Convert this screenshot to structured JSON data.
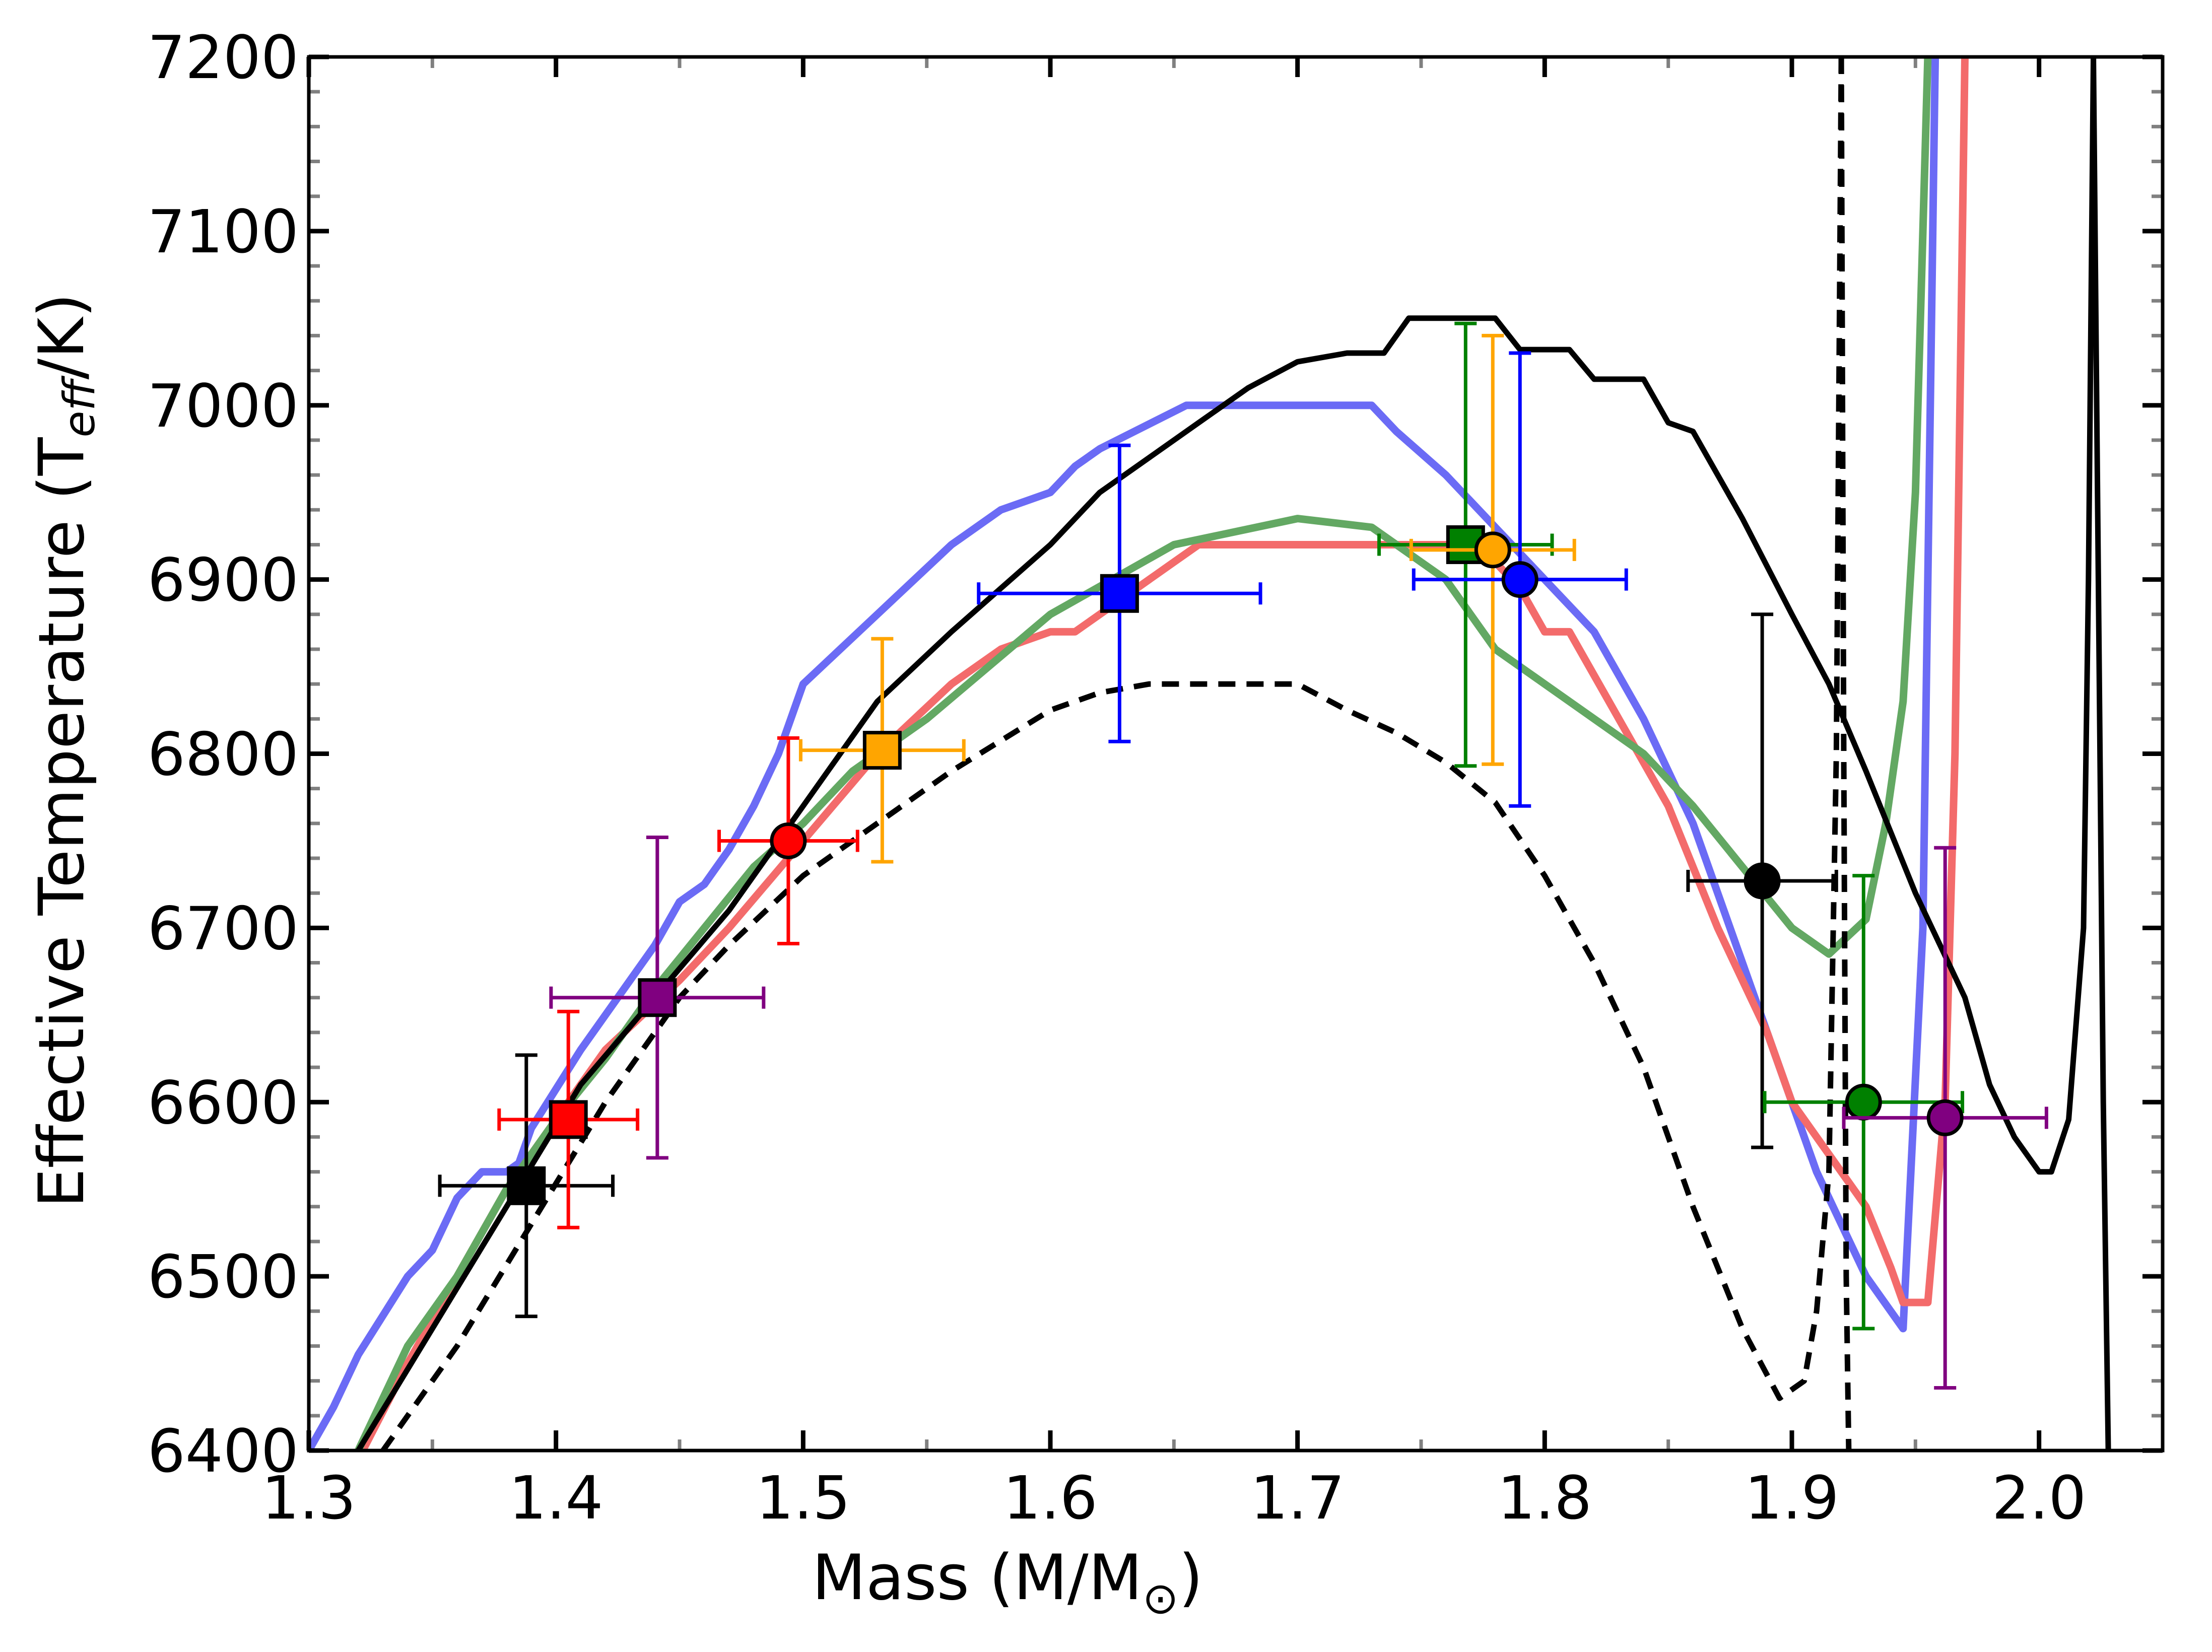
{
  "chart_data": {
    "type": "line",
    "title": "",
    "xlabel": "Mass (M/M",
    "xlabel_symbol": "⊙",
    "xlabel_close": ")",
    "ylabel": "Effective Temperature (T",
    "ylabel_sub": "eff",
    "ylabel_close": "/K)",
    "xlim": [
      1.3,
      2.05
    ],
    "ylim": [
      6400,
      7200
    ],
    "xticks": [
      1.3,
      1.4,
      1.5,
      1.6,
      1.7,
      1.8,
      1.9,
      2.0
    ],
    "xtick_labels": [
      "1.3",
      "1.4",
      "1.5",
      "1.6",
      "1.7",
      "1.8",
      "1.9",
      "2.0"
    ],
    "yticks": [
      6400,
      6500,
      6600,
      6700,
      6800,
      6900,
      7000,
      7100,
      7200
    ],
    "ytick_labels": [
      "6400",
      "6500",
      "6600",
      "6700",
      "6800",
      "6900",
      "7000",
      "7100",
      "7200"
    ],
    "series": [
      {
        "name": "blue track",
        "color": "#6b6bf5",
        "width": 15,
        "dash": "",
        "points": [
          [
            1.3,
            6400
          ],
          [
            1.31,
            6425
          ],
          [
            1.32,
            6455
          ],
          [
            1.34,
            6500
          ],
          [
            1.35,
            6515
          ],
          [
            1.36,
            6545
          ],
          [
            1.37,
            6560
          ],
          [
            1.38,
            6560
          ],
          [
            1.385,
            6565
          ],
          [
            1.39,
            6585
          ],
          [
            1.41,
            6630
          ],
          [
            1.42,
            6650
          ],
          [
            1.43,
            6670
          ],
          [
            1.44,
            6690
          ],
          [
            1.45,
            6715
          ],
          [
            1.46,
            6725
          ],
          [
            1.47,
            6745
          ],
          [
            1.48,
            6770
          ],
          [
            1.49,
            6800
          ],
          [
            1.5,
            6840
          ],
          [
            1.53,
            6880
          ],
          [
            1.56,
            6920
          ],
          [
            1.58,
            6940
          ],
          [
            1.6,
            6950
          ],
          [
            1.61,
            6965
          ],
          [
            1.62,
            6975
          ],
          [
            1.655,
            7000
          ],
          [
            1.73,
            7000
          ],
          [
            1.74,
            6985
          ],
          [
            1.76,
            6960
          ],
          [
            1.78,
            6930
          ],
          [
            1.8,
            6900
          ],
          [
            1.82,
            6870
          ],
          [
            1.84,
            6820
          ],
          [
            1.86,
            6760
          ],
          [
            1.875,
            6700
          ],
          [
            1.89,
            6640
          ],
          [
            1.9,
            6600
          ],
          [
            1.91,
            6560
          ],
          [
            1.92,
            6530
          ],
          [
            1.93,
            6500
          ],
          [
            1.945,
            6470
          ],
          [
            1.953,
            6700
          ],
          [
            1.958,
            7200
          ]
        ]
      },
      {
        "name": "red track",
        "color": "#f36b6b",
        "width": 15,
        "dash": "",
        "points": [
          [
            1.32,
            6395
          ],
          [
            1.34,
            6450
          ],
          [
            1.36,
            6500
          ],
          [
            1.38,
            6550
          ],
          [
            1.4,
            6590
          ],
          [
            1.42,
            6630
          ],
          [
            1.45,
            6670
          ],
          [
            1.47,
            6700
          ],
          [
            1.5,
            6750
          ],
          [
            1.53,
            6800
          ],
          [
            1.56,
            6840
          ],
          [
            1.58,
            6860
          ],
          [
            1.6,
            6870
          ],
          [
            1.61,
            6870
          ],
          [
            1.63,
            6890
          ],
          [
            1.65,
            6910
          ],
          [
            1.66,
            6920
          ],
          [
            1.77,
            6920
          ],
          [
            1.78,
            6910
          ],
          [
            1.79,
            6895
          ],
          [
            1.8,
            6870
          ],
          [
            1.81,
            6870
          ],
          [
            1.83,
            6820
          ],
          [
            1.85,
            6770
          ],
          [
            1.87,
            6700
          ],
          [
            1.89,
            6640
          ],
          [
            1.9,
            6600
          ],
          [
            1.93,
            6540
          ],
          [
            1.94,
            6505
          ],
          [
            1.945,
            6485
          ],
          [
            1.955,
            6485
          ],
          [
            1.962,
            6600
          ],
          [
            1.966,
            6800
          ],
          [
            1.97,
            7200
          ]
        ]
      },
      {
        "name": "green track",
        "color": "#63a863",
        "width": 15,
        "dash": "",
        "points": [
          [
            1.32,
            6400
          ],
          [
            1.34,
            6460
          ],
          [
            1.36,
            6500
          ],
          [
            1.38,
            6550
          ],
          [
            1.4,
            6590
          ],
          [
            1.42,
            6625
          ],
          [
            1.44,
            6665
          ],
          [
            1.46,
            6700
          ],
          [
            1.48,
            6735
          ],
          [
            1.5,
            6760
          ],
          [
            1.52,
            6790
          ],
          [
            1.55,
            6820
          ],
          [
            1.6,
            6880
          ],
          [
            1.65,
            6920
          ],
          [
            1.7,
            6935
          ],
          [
            1.73,
            6930
          ],
          [
            1.76,
            6900
          ],
          [
            1.77,
            6880
          ],
          [
            1.78,
            6860
          ],
          [
            1.8,
            6840
          ],
          [
            1.84,
            6800
          ],
          [
            1.86,
            6770
          ],
          [
            1.9,
            6700
          ],
          [
            1.915,
            6685
          ],
          [
            1.93,
            6705
          ],
          [
            1.938,
            6760
          ],
          [
            1.945,
            6830
          ],
          [
            1.95,
            6950
          ],
          [
            1.953,
            7100
          ],
          [
            1.955,
            7200
          ]
        ]
      },
      {
        "name": "black solid track",
        "color": "#000000",
        "width": 11,
        "dash": "",
        "points": [
          [
            1.32,
            6400
          ],
          [
            1.35,
            6470
          ],
          [
            1.38,
            6540
          ],
          [
            1.41,
            6610
          ],
          [
            1.44,
            6660
          ],
          [
            1.47,
            6710
          ],
          [
            1.5,
            6770
          ],
          [
            1.53,
            6830
          ],
          [
            1.56,
            6870
          ],
          [
            1.6,
            6920
          ],
          [
            1.62,
            6950
          ],
          [
            1.64,
            6970
          ],
          [
            1.66,
            6990
          ],
          [
            1.68,
            7010
          ],
          [
            1.7,
            7025
          ],
          [
            1.72,
            7030
          ],
          [
            1.735,
            7030
          ],
          [
            1.745,
            7050
          ],
          [
            1.78,
            7050
          ],
          [
            1.79,
            7032
          ],
          [
            1.81,
            7032
          ],
          [
            1.82,
            7015
          ],
          [
            1.84,
            7015
          ],
          [
            1.85,
            6990
          ],
          [
            1.86,
            6985
          ],
          [
            1.87,
            6960
          ],
          [
            1.88,
            6935
          ],
          [
            1.9,
            6880
          ],
          [
            1.915,
            6840
          ],
          [
            1.93,
            6790
          ],
          [
            1.95,
            6720
          ],
          [
            1.97,
            6660
          ],
          [
            1.98,
            6610
          ],
          [
            1.99,
            6580
          ],
          [
            2.0,
            6560
          ],
          [
            2.005,
            6560
          ],
          [
            2.012,
            6590
          ],
          [
            2.018,
            6700
          ],
          [
            2.02,
            6900
          ],
          [
            2.022,
            7200
          ]
        ]
      },
      {
        "name": "black solid track (descending)",
        "color": "#000000",
        "width": 11,
        "dash": "",
        "points": [
          [
            2.022,
            7200
          ],
          [
            2.024,
            6900
          ],
          [
            2.026,
            6600
          ],
          [
            2.028,
            6400
          ]
        ]
      },
      {
        "name": "black dashed track",
        "color": "#000000",
        "width": 11,
        "dash": "34 22",
        "points": [
          [
            1.33,
            6400
          ],
          [
            1.36,
            6460
          ],
          [
            1.39,
            6530
          ],
          [
            1.42,
            6600
          ],
          [
            1.45,
            6660
          ],
          [
            1.47,
            6690
          ],
          [
            1.5,
            6730
          ],
          [
            1.53,
            6760
          ],
          [
            1.56,
            6790
          ],
          [
            1.6,
            6825
          ],
          [
            1.62,
            6835
          ],
          [
            1.64,
            6840
          ],
          [
            1.7,
            6840
          ],
          [
            1.72,
            6825
          ],
          [
            1.74,
            6812
          ],
          [
            1.76,
            6795
          ],
          [
            1.78,
            6772
          ],
          [
            1.8,
            6730
          ],
          [
            1.82,
            6680
          ],
          [
            1.84,
            6620
          ],
          [
            1.86,
            6540
          ],
          [
            1.88,
            6470
          ],
          [
            1.895,
            6430
          ],
          [
            1.905,
            6440
          ],
          [
            1.91,
            6480
          ],
          [
            1.915,
            6560
          ],
          [
            1.918,
            6800
          ],
          [
            1.92,
            7200
          ]
        ]
      },
      {
        "name": "black dashed track (descending)",
        "color": "#000000",
        "width": 11,
        "dash": "34 22",
        "points": [
          [
            1.92,
            7200
          ],
          [
            1.921,
            6800
          ],
          [
            1.922,
            6500
          ],
          [
            1.923,
            6400
          ]
        ]
      }
    ],
    "points": [
      {
        "marker": "square",
        "color": "#000000",
        "x": 1.388,
        "y": 6552,
        "xerr": 0.035,
        "yerr": 75
      },
      {
        "marker": "square",
        "color": "#ff0000",
        "x": 1.405,
        "y": 6590,
        "xerr": 0.028,
        "yerr": 62
      },
      {
        "marker": "square",
        "color": "#800080",
        "x": 1.441,
        "y": 6660,
        "xerr": 0.043,
        "yerr": 92
      },
      {
        "marker": "circle",
        "color": "#ff0000",
        "x": 1.494,
        "y": 6750,
        "xerr": 0.028,
        "yerr": 59
      },
      {
        "marker": "square",
        "color": "#ffa500",
        "x": 1.532,
        "y": 6802,
        "xerr": 0.033,
        "yerr": 64
      },
      {
        "marker": "square",
        "color": "#0000ff",
        "x": 1.628,
        "y": 6892,
        "xerr": 0.057,
        "yerr": 85
      },
      {
        "marker": "square",
        "color": "#008000",
        "x": 1.768,
        "y": 6920,
        "xerr": 0.035,
        "yerr": 127
      },
      {
        "marker": "circle",
        "color": "#ffa500",
        "x": 1.779,
        "y": 6917,
        "xerr": 0.033,
        "yerr": 123
      },
      {
        "marker": "circle",
        "color": "#0000ff",
        "x": 1.79,
        "y": 6900,
        "xerr": 0.043,
        "yerr": 130
      },
      {
        "marker": "circle",
        "color": "#000000",
        "x": 1.888,
        "y": 6727,
        "xerr": 0.03,
        "yerr": 153
      },
      {
        "marker": "circle",
        "color": "#008000",
        "x": 1.929,
        "y": 6600,
        "xerr": 0.04,
        "yerr": 130
      },
      {
        "marker": "circle",
        "color": "#800080",
        "x": 1.962,
        "y": 6591,
        "xerr": 0.041,
        "yerr": 155
      }
    ]
  }
}
